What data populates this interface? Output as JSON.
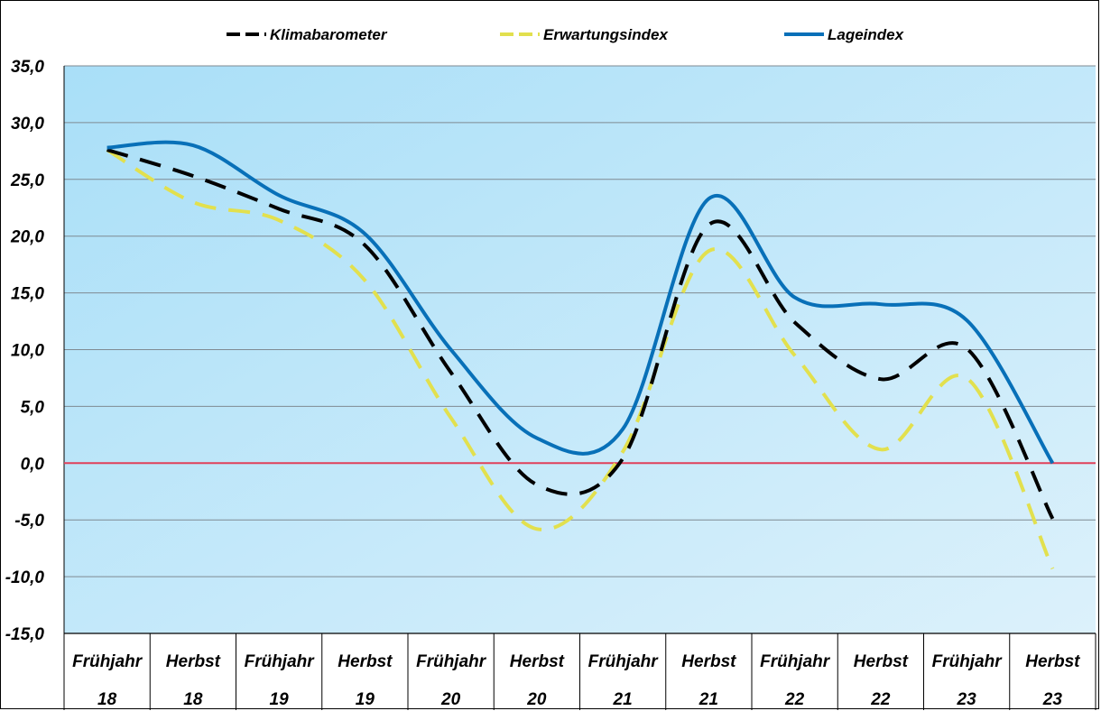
{
  "chart_data": {
    "type": "line",
    "title": "",
    "xlabel": "",
    "ylabel": "",
    "categories": [
      [
        "Frühjahr",
        "18"
      ],
      [
        "Herbst",
        "18"
      ],
      [
        "Frühjahr",
        "19"
      ],
      [
        "Herbst",
        "19"
      ],
      [
        "Frühjahr",
        "20"
      ],
      [
        "Herbst",
        "20"
      ],
      [
        "Frühjahr",
        "21"
      ],
      [
        "Herbst",
        "21"
      ],
      [
        "Frühjahr",
        "22"
      ],
      [
        "Herbst",
        "22"
      ],
      [
        "Frühjahr",
        "23"
      ],
      [
        "Herbst",
        "23"
      ]
    ],
    "ylim": [
      -15,
      35
    ],
    "yticks": [
      35,
      30,
      25,
      20,
      15,
      10,
      5,
      0,
      -5,
      -10,
      -15
    ],
    "ytick_labels": [
      "35,0",
      "30,0",
      "25,0",
      "20,0",
      "15,0",
      "10,0",
      "5,0",
      "0,0",
      "-5,0",
      "-10,0",
      "-15,0"
    ],
    "grid": true,
    "legend_position": "top",
    "zero_line_color": "#e0405a",
    "series": [
      {
        "name": "Klimabarometer",
        "color": "#000000",
        "style": "dashed",
        "values": [
          27.6,
          25.3,
          22.4,
          19.2,
          8.0,
          -1.9,
          0.4,
          21.0,
          12.4,
          7.4,
          10.1,
          -4.9
        ]
      },
      {
        "name": "Erwartungsindex",
        "color": "#e2e04e",
        "style": "dashed",
        "values": [
          27.6,
          23.0,
          21.4,
          16.1,
          4.0,
          -5.8,
          1.0,
          18.7,
          9.5,
          1.2,
          7.5,
          -9.3
        ]
      },
      {
        "name": "Lageindex",
        "color": "#0870b8",
        "style": "solid",
        "values": [
          27.8,
          28.0,
          23.6,
          20.2,
          10.0,
          2.2,
          3.0,
          23.3,
          14.6,
          14.0,
          12.6,
          0.0
        ]
      }
    ]
  }
}
